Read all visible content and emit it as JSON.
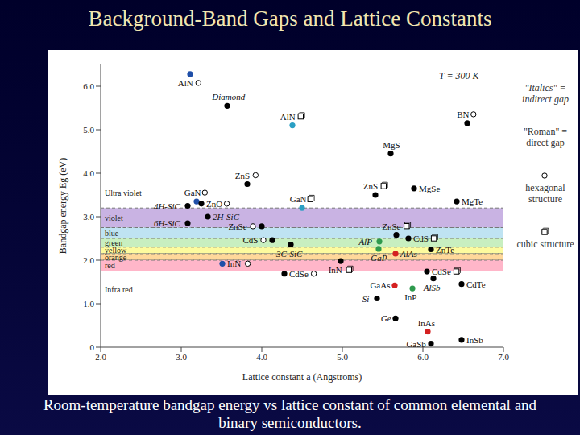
{
  "slide": {
    "title": "Background-Band Gaps and Lattice Constants",
    "caption": "Room-temperature bandgap energy vs lattice constant of common elemental and binary semiconductors."
  },
  "chart_data": {
    "type": "scatter",
    "xlabel": "Lattice constant a (Angstroms)",
    "ylabel": "Bandgap energy Eg (eV)",
    "xlim": [
      2,
      7
    ],
    "ylim": [
      0,
      6.5
    ],
    "xticks": [
      {
        "value": 2,
        "label": "2.0"
      },
      {
        "value": 3,
        "label": "3.0"
      },
      {
        "value": 4,
        "label": "4.0"
      },
      {
        "value": 5,
        "label": "5.0"
      },
      {
        "value": 6,
        "label": "6.0"
      },
      {
        "value": 7,
        "label": "7.0"
      }
    ],
    "yticks": [
      0,
      {
        "value": 1,
        "label": "1.0"
      },
      {
        "value": 2,
        "label": "2.0"
      },
      {
        "value": 3,
        "label": "3.0"
      },
      {
        "value": 4,
        "label": "4.0"
      },
      {
        "value": 5,
        "label": "5.0"
      },
      {
        "value": 6,
        "label": "6.0"
      }
    ],
    "grid": false,
    "annotations": [
      "T = 300 K"
    ],
    "bands": [
      {
        "label": "Ultra violet",
        "range": [
          3.2,
          3.9
        ],
        "color": null
      },
      {
        "label": "violet",
        "range": [
          2.75,
          3.2
        ],
        "color": "#c9b3e3"
      },
      {
        "label": "blue",
        "range": [
          2.5,
          2.75
        ],
        "color": "#bfe3f2"
      },
      {
        "label": "green",
        "range": [
          2.3,
          2.5
        ],
        "color": "#c8efc0"
      },
      {
        "label": "yellow",
        "range": [
          2.15,
          2.3
        ],
        "color": "#fdfb9e"
      },
      {
        "label": "orange",
        "range": [
          2.0,
          2.15
        ],
        "color": "#ffd89a"
      },
      {
        "label": "red",
        "range": [
          1.75,
          2.0
        ],
        "color": "#ffb6c9"
      },
      {
        "label": "Infra red",
        "range": [
          0.9,
          1.75
        ],
        "color": null
      }
    ],
    "key": [
      {
        "gap": "indirect",
        "text": "\"Italics\" = indirect gap"
      },
      {
        "gap": "direct",
        "text": "\"Roman\" = direct gap"
      },
      {
        "structure": "hexagonal",
        "text": "hexagonal structure"
      },
      {
        "structure": "cubic",
        "text": "cubic structure"
      }
    ],
    "points": [
      {
        "name": "AlN",
        "x": 3.11,
        "y": 6.28,
        "color": "#1f4fa8",
        "structure": "hexagonal",
        "gap": "direct"
      },
      {
        "name": "Diamond",
        "x": 3.57,
        "y": 5.55,
        "color": "#000000",
        "structure": null,
        "gap": "indirect"
      },
      {
        "name": "AlN",
        "x": 4.38,
        "y": 5.1,
        "color": "#2a9fc4",
        "structure": "cubic",
        "gap": "direct"
      },
      {
        "name": "BN",
        "x": 6.55,
        "y": 5.15,
        "color": "#000000",
        "structure": "hexagonal",
        "gap": "direct"
      },
      {
        "name": "MgS",
        "x": 5.6,
        "y": 4.45,
        "color": "#000000",
        "structure": null,
        "gap": "direct"
      },
      {
        "name": "ZnS",
        "x": 3.82,
        "y": 3.75,
        "color": "#000000",
        "structure": "hexagonal",
        "gap": "direct"
      },
      {
        "name": "MgSe",
        "x": 5.89,
        "y": 3.65,
        "color": "#000000",
        "structure": null,
        "gap": "direct"
      },
      {
        "name": "ZnS",
        "x": 5.41,
        "y": 3.5,
        "color": "#000000",
        "structure": "cubic",
        "gap": "direct"
      },
      {
        "name": "MgTe",
        "x": 6.42,
        "y": 3.35,
        "color": "#000000",
        "structure": null,
        "gap": "direct"
      },
      {
        "name": "4H-SiC",
        "x": 3.08,
        "y": 3.25,
        "color": "#000000",
        "structure": null,
        "gap": "indirect"
      },
      {
        "name": "GaN",
        "x": 3.19,
        "y": 3.35,
        "color": "#1f4fa8",
        "structure": "hexagonal",
        "gap": "direct"
      },
      {
        "name": "ZnO",
        "x": 3.25,
        "y": 3.3,
        "color": "#000000",
        "structure": "hexagonal",
        "gap": "direct"
      },
      {
        "name": "2H-SiC",
        "x": 3.33,
        "y": 3.0,
        "color": "#000000",
        "structure": null,
        "gap": "indirect"
      },
      {
        "name": "6H-SiC",
        "x": 3.08,
        "y": 2.85,
        "color": "#000000",
        "structure": null,
        "gap": "indirect"
      },
      {
        "name": "GaN",
        "x": 4.5,
        "y": 3.2,
        "color": "#2a9fc4",
        "structure": "cubic",
        "gap": "direct"
      },
      {
        "name": "ZnSe",
        "x": 4.0,
        "y": 2.78,
        "color": "#000000",
        "structure": "hexagonal",
        "gap": "direct"
      },
      {
        "name": "CdS",
        "x": 4.13,
        "y": 2.46,
        "color": "#000000",
        "structure": "hexagonal",
        "gap": "direct"
      },
      {
        "name": "3C-SiC",
        "x": 4.36,
        "y": 2.36,
        "color": "#000000",
        "structure": null,
        "gap": "indirect"
      },
      {
        "name": "InN",
        "x": 4.98,
        "y": 1.98,
        "color": "#000000",
        "structure": "cubic",
        "gap": "direct"
      },
      {
        "name": "AlP",
        "x": 5.46,
        "y": 2.43,
        "color": "#2e9a4e",
        "structure": null,
        "gap": "indirect"
      },
      {
        "name": "GaP",
        "x": 5.45,
        "y": 2.26,
        "color": "#2e9a4e",
        "structure": null,
        "gap": "indirect"
      },
      {
        "name": "ZnSe",
        "x": 5.67,
        "y": 2.58,
        "color": "#000000",
        "structure": "cubic",
        "gap": "direct"
      },
      {
        "name": "CdS",
        "x": 5.82,
        "y": 2.5,
        "color": "#000000",
        "structure": "cubic",
        "gap": "direct"
      },
      {
        "name": "AlAs",
        "x": 5.66,
        "y": 2.15,
        "color": "#d42020",
        "structure": null,
        "gap": "indirect"
      },
      {
        "name": "ZnTe",
        "x": 6.1,
        "y": 2.25,
        "color": "#000000",
        "structure": null,
        "gap": "direct"
      },
      {
        "name": "CdSe",
        "x": 6.05,
        "y": 1.74,
        "color": "#000000",
        "structure": "cubic",
        "gap": "direct"
      },
      {
        "name": "AlSb",
        "x": 6.13,
        "y": 1.58,
        "color": "#000000",
        "structure": null,
        "gap": "indirect"
      },
      {
        "name": "CdTe",
        "x": 6.48,
        "y": 1.45,
        "color": "#000000",
        "structure": null,
        "gap": "direct"
      },
      {
        "name": "InP",
        "x": 5.87,
        "y": 1.35,
        "color": "#2e9a4e",
        "structure": null,
        "gap": "direct"
      },
      {
        "name": "GaAs",
        "x": 5.65,
        "y": 1.42,
        "color": "#d42020",
        "structure": null,
        "gap": "direct"
      },
      {
        "name": "Si",
        "x": 5.43,
        "y": 1.12,
        "color": "#000000",
        "structure": null,
        "gap": "indirect"
      },
      {
        "name": "Ge",
        "x": 5.66,
        "y": 0.66,
        "color": "#000000",
        "structure": null,
        "gap": "indirect"
      },
      {
        "name": "InAs",
        "x": 6.06,
        "y": 0.36,
        "color": "#d42020",
        "structure": null,
        "gap": "direct"
      },
      {
        "name": "GaSb",
        "x": 6.1,
        "y": 0.08,
        "color": "#000000",
        "structure": null,
        "gap": "direct"
      },
      {
        "name": "InSb",
        "x": 6.48,
        "y": 0.17,
        "color": "#000000",
        "structure": null,
        "gap": "direct"
      },
      {
        "name": "InN",
        "x": 3.51,
        "y": 1.92,
        "color": "#1f4fa8",
        "structure": "hexagonal",
        "gap": "direct"
      },
      {
        "name": "CdSe",
        "x": 4.28,
        "y": 1.69,
        "color": "#000000",
        "structure": "hexagonal",
        "gap": "direct"
      }
    ]
  }
}
